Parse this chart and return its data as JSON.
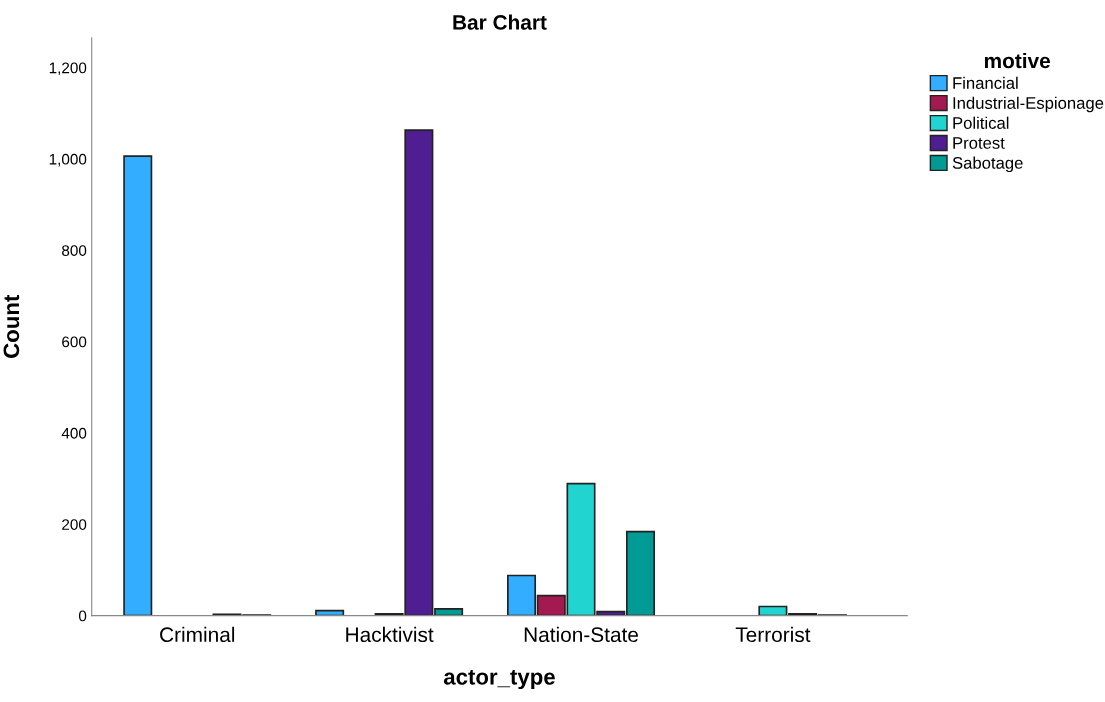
{
  "chart_data": {
    "type": "bar",
    "title": "Bar Chart",
    "xlabel": "actor_type",
    "ylabel": "Count",
    "legend_title": "motive",
    "categories": [
      "Criminal",
      "Hacktivist",
      "Nation-State",
      "Terrorist"
    ],
    "series": [
      {
        "name": "Financial",
        "color": "#33adff",
        "values": [
          1006,
          11,
          88,
          null
        ]
      },
      {
        "name": "Industrial-Espionage",
        "color": "#a21a4f",
        "values": [
          null,
          null,
          44,
          null
        ]
      },
      {
        "name": "Political",
        "color": "#22d4d0",
        "values": [
          null,
          4,
          289,
          20
        ]
      },
      {
        "name": "Protest",
        "color": "#4f1f91",
        "values": [
          3,
          1063,
          9,
          4
        ]
      },
      {
        "name": "Sabotage",
        "color": "#009b95",
        "values": [
          1,
          15,
          184,
          1
        ]
      }
    ],
    "ylim": [
      0,
      1265
    ],
    "yticks": [
      0,
      200,
      400,
      600,
      800,
      {
        "value": 1000,
        "label": "1,000"
      },
      {
        "value": 1200,
        "label": "1,200"
      }
    ],
    "grid": false,
    "legend": "top right"
  }
}
